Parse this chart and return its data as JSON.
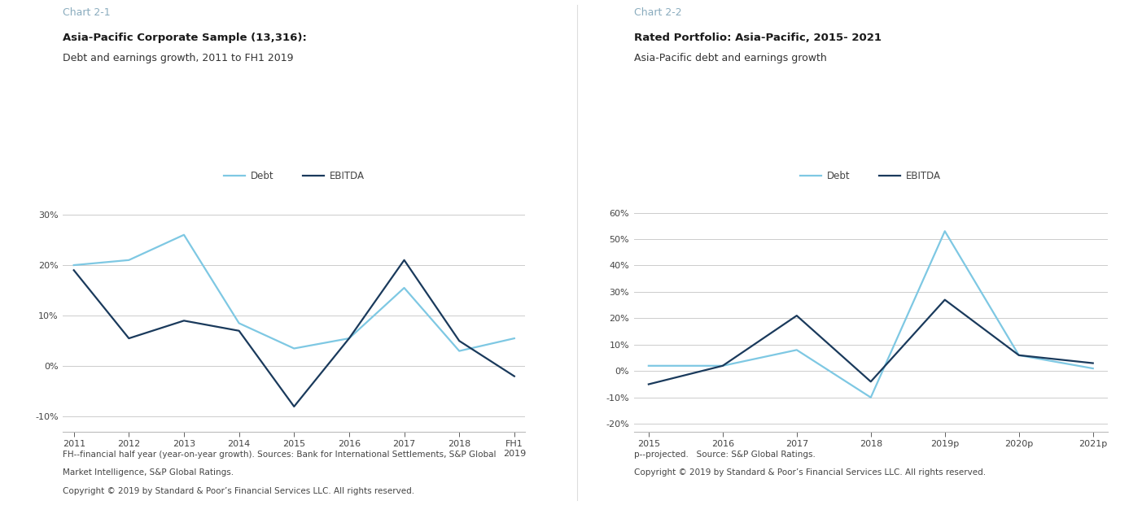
{
  "chart1": {
    "title_label": "Chart 2-1",
    "bold_title": "Asia-Pacific Corporate Sample (13,316):",
    "subtitle": "Debt and earnings growth, 2011 to FH1 2019",
    "x_labels": [
      "2011",
      "2012",
      "2013",
      "2014",
      "2015",
      "2016",
      "2017",
      "2018",
      "FH1\n2019"
    ],
    "debt": [
      20,
      21,
      26,
      8.5,
      3.5,
      5.5,
      15.5,
      3,
      5.5
    ],
    "ebitda": [
      19,
      5.5,
      9,
      7,
      -8,
      5.5,
      21,
      5,
      -2
    ],
    "ylim": [
      -13,
      33
    ],
    "yticks": [
      -10,
      0,
      10,
      20,
      30
    ],
    "footnote1": "FH--financial half year (year-on-year growth). Sources: Bank for International Settlements, S&P Global",
    "footnote2": "Market Intelligence, S&P Global Ratings.",
    "footnote3": "Copyright © 2019 by Standard & Poor’s Financial Services LLC. All rights reserved."
  },
  "chart2": {
    "title_label": "Chart 2-2",
    "bold_title": "Rated Portfolio: Asia-Pacific, 2015- 2021",
    "subtitle": "Asia-Pacific debt and earnings growth",
    "x_labels": [
      "2015",
      "2016",
      "2017",
      "2018",
      "2019p",
      "2020p",
      "2021p"
    ],
    "debt": [
      2,
      2,
      8,
      -10,
      53,
      6,
      1
    ],
    "ebitda": [
      -5,
      2,
      21,
      -4,
      27,
      6,
      3
    ],
    "ylim": [
      -23,
      65
    ],
    "yticks": [
      -20,
      -10,
      0,
      10,
      20,
      30,
      40,
      50,
      60
    ],
    "footnote1": "p--projected.   Source: S&P Global Ratings.",
    "footnote2": "Copyright © 2019 by Standard & Poor’s Financial Services LLC. All rights reserved."
  },
  "debt_color_light": "#7EC8E3",
  "ebitda_color_dark": "#1A3A5C",
  "grid_color": "#CCCCCC",
  "title_label_color": "#8AACBE",
  "text_color": "#444444",
  "bg_color": "#FFFFFF",
  "line_width": 1.6
}
